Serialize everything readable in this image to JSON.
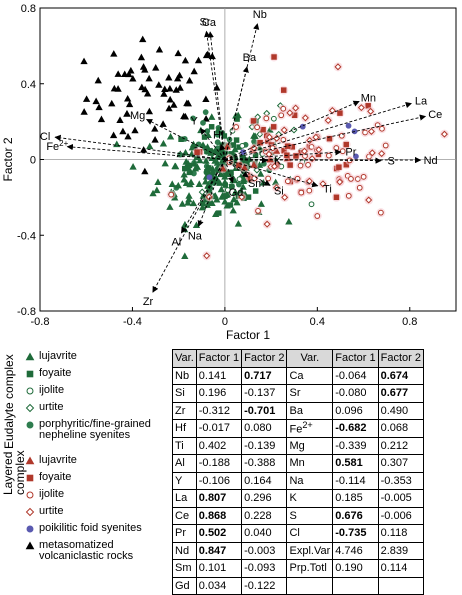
{
  "chart_data": {
    "type": "scatter",
    "xlabel": "Factor 1",
    "ylabel": "Factor 2",
    "xlim": [
      -0.8,
      1.0
    ],
    "ylim": [
      -0.8,
      0.8
    ],
    "xticks": [
      "-0.8",
      "-0.4",
      "0",
      "0.4",
      "0.8"
    ],
    "xtick_values": [
      -0.8,
      -0.4,
      0,
      0.4,
      0.8
    ],
    "yticks": [
      "0.8",
      "0.4",
      "0",
      "-0.4",
      "-0.8"
    ],
    "ytick_values": [
      0.8,
      0.4,
      0,
      -0.4,
      -0.8
    ],
    "loadings": [
      {
        "label": "Nb",
        "x": 0.141,
        "y": 0.717
      },
      {
        "label": "Sr",
        "x": -0.08,
        "y": 0.677
      },
      {
        "label": "Ca",
        "x": -0.064,
        "y": 0.674
      },
      {
        "label": "Ba",
        "x": 0.096,
        "y": 0.49
      },
      {
        "label": "Mg",
        "x": -0.339,
        "y": 0.212
      },
      {
        "label": "Cl",
        "x": -0.735,
        "y": 0.118
      },
      {
        "label": "Fe2+",
        "x": -0.682,
        "y": 0.068
      },
      {
        "label": "Hf",
        "x": -0.017,
        "y": 0.08
      },
      {
        "label": "Mn",
        "x": 0.581,
        "y": 0.307
      },
      {
        "label": "La",
        "x": 0.807,
        "y": 0.296
      },
      {
        "label": "Ce",
        "x": 0.868,
        "y": 0.228
      },
      {
        "label": "K",
        "x": 0.185,
        "y": -0.005
      },
      {
        "label": "Pr",
        "x": 0.502,
        "y": 0.04
      },
      {
        "label": "S",
        "x": 0.676,
        "y": -0.006
      },
      {
        "label": "Nd",
        "x": 0.847,
        "y": -0.003
      },
      {
        "label": "Sm",
        "x": 0.101,
        "y": -0.093
      },
      {
        "label": "Si",
        "x": 0.196,
        "y": -0.137
      },
      {
        "label": "Ti",
        "x": 0.402,
        "y": -0.139
      },
      {
        "label": "Y",
        "x": -0.106,
        "y": 0.164
      },
      {
        "label": "Gd",
        "x": 0.034,
        "y": -0.122
      },
      {
        "label": "Na",
        "x": -0.114,
        "y": -0.353
      },
      {
        "label": "Al",
        "x": -0.188,
        "y": -0.388
      },
      {
        "label": "Zr",
        "x": -0.312,
        "y": -0.701
      }
    ],
    "series": [
      {
        "name": "lujavrite",
        "group": "Eudalyte complex",
        "marker": "triangle",
        "color": "#1f6b3a",
        "filled": true
      },
      {
        "name": "foyaite",
        "group": "Eudalyte complex",
        "marker": "square",
        "color": "#1f6b3a",
        "filled": true
      },
      {
        "name": "ijolite",
        "group": "Eudalyte complex",
        "marker": "circle",
        "color": "#1f6b3a",
        "filled": false
      },
      {
        "name": "urtite",
        "group": "Eudalyte complex",
        "marker": "diamond",
        "color": "#1f6b3a",
        "filled": false
      },
      {
        "name": "porphyritic/fine-grained nepheline syenites",
        "group": "Eudalyte complex",
        "marker": "circle",
        "color": "#2e7d4f",
        "filled": true
      },
      {
        "name": "lujavrite",
        "group": "Layered complex",
        "marker": "triangle",
        "color": "#b0382b",
        "filled": true
      },
      {
        "name": "foyaite",
        "group": "Layered complex",
        "marker": "square",
        "color": "#b0382b",
        "filled": true
      },
      {
        "name": "ijolite",
        "group": "Layered complex",
        "marker": "circle",
        "color": "#b0382b",
        "filled": false
      },
      {
        "name": "urtite",
        "group": "Layered complex",
        "marker": "diamond",
        "color": "#b0382b",
        "filled": false
      },
      {
        "name": "poikilitic foid syenites",
        "group": "",
        "marker": "circle",
        "color": "#5a5ab0",
        "filled": true
      },
      {
        "name": "metasomatized volcaniclastic rocks",
        "group": "",
        "marker": "triangle",
        "color": "#000000",
        "filled": true
      }
    ],
    "clusters": [
      {
        "series": 0,
        "cx": -0.05,
        "cy": -0.07,
        "sx": 0.12,
        "sy": 0.13,
        "n": 160
      },
      {
        "series": 1,
        "cx": 0.02,
        "cy": -0.02,
        "sx": 0.12,
        "sy": 0.1,
        "n": 35
      },
      {
        "series": 2,
        "cx": 0.15,
        "cy": 0.02,
        "sx": 0.1,
        "sy": 0.1,
        "n": 12
      },
      {
        "series": 3,
        "cx": 0.2,
        "cy": 0.05,
        "sx": 0.15,
        "sy": 0.12,
        "n": 10
      },
      {
        "series": 4,
        "cx": -0.02,
        "cy": 0.0,
        "sx": 0.1,
        "sy": 0.1,
        "n": 45
      },
      {
        "series": 5,
        "cx": 0.15,
        "cy": 0.0,
        "sx": 0.1,
        "sy": 0.08,
        "n": 12
      },
      {
        "series": 6,
        "cx": 0.3,
        "cy": 0.05,
        "sx": 0.2,
        "sy": 0.15,
        "n": 35
      },
      {
        "series": 7,
        "cx": 0.35,
        "cy": -0.05,
        "sx": 0.22,
        "sy": 0.15,
        "n": 45
      },
      {
        "series": 8,
        "cx": 0.42,
        "cy": 0.0,
        "sx": 0.22,
        "sy": 0.2,
        "n": 35
      },
      {
        "series": 9,
        "cx": 0.3,
        "cy": 0.05,
        "sx": 0.25,
        "sy": 0.12,
        "n": 6
      },
      {
        "series": 10,
        "cx": -0.3,
        "cy": 0.33,
        "sx": 0.15,
        "sy": 0.15,
        "n": 70
      }
    ]
  },
  "legend": {
    "group1": "Eudalyte complex",
    "group2": "Layered complex",
    "items": [
      "lujavrite",
      "foyaite",
      "ijolite",
      "urtite",
      "porphyritic/fine-grained nepheline syenites",
      "lujavrite",
      "foyaite",
      "ijolite",
      "urtite",
      "poikilitic foid syenites",
      "metasomatized volcaniclastic rocks"
    ]
  },
  "table": {
    "headers": [
      "Var.",
      "Factor 1",
      "Factor 2",
      "Var.",
      "Factor 1",
      "Factor 2"
    ],
    "rows": [
      [
        {
          "t": "Nb"
        },
        {
          "t": "0.141"
        },
        {
          "t": "0.717",
          "b": true
        },
        {
          "t": "Ca"
        },
        {
          "t": "-0.064"
        },
        {
          "t": "0.674",
          "b": true
        }
      ],
      [
        {
          "t": "Si"
        },
        {
          "t": "0.196"
        },
        {
          "t": "-0.137"
        },
        {
          "t": "Sr"
        },
        {
          "t": "-0.080"
        },
        {
          "t": "0.677",
          "b": true
        }
      ],
      [
        {
          "t": "Zr"
        },
        {
          "t": "-0.312"
        },
        {
          "t": "-0.701",
          "b": true
        },
        {
          "t": "Ba"
        },
        {
          "t": "0.096"
        },
        {
          "t": "0.490"
        }
      ],
      [
        {
          "t": "Hf"
        },
        {
          "t": "-0.017"
        },
        {
          "t": "0.080"
        },
        {
          "t": "Fe2+",
          "sup": true
        },
        {
          "t": "-0.682",
          "b": true
        },
        {
          "t": "0.068"
        }
      ],
      [
        {
          "t": "Ti"
        },
        {
          "t": "0.402"
        },
        {
          "t": "-0.139"
        },
        {
          "t": "Mg"
        },
        {
          "t": "-0.339"
        },
        {
          "t": "0.212"
        }
      ],
      [
        {
          "t": "Al"
        },
        {
          "t": "-0.188"
        },
        {
          "t": "-0.388"
        },
        {
          "t": "Mn"
        },
        {
          "t": "0.581",
          "b": true
        },
        {
          "t": "0.307"
        }
      ],
      [
        {
          "t": "Y"
        },
        {
          "t": "-0.106"
        },
        {
          "t": "0.164"
        },
        {
          "t": "Na"
        },
        {
          "t": "-0.114"
        },
        {
          "t": "-0.353"
        }
      ],
      [
        {
          "t": "La"
        },
        {
          "t": "0.807",
          "b": true
        },
        {
          "t": "0.296"
        },
        {
          "t": "K"
        },
        {
          "t": "0.185"
        },
        {
          "t": "-0.005"
        }
      ],
      [
        {
          "t": "Ce"
        },
        {
          "t": "0.868",
          "b": true
        },
        {
          "t": "0.228"
        },
        {
          "t": "S"
        },
        {
          "t": "0.676",
          "b": true
        },
        {
          "t": "-0.006"
        }
      ],
      [
        {
          "t": "Pr"
        },
        {
          "t": "0.502",
          "b": true
        },
        {
          "t": "0.040"
        },
        {
          "t": "Cl"
        },
        {
          "t": "-0.735",
          "b": true
        },
        {
          "t": "0.118"
        }
      ],
      [
        {
          "t": "Nd"
        },
        {
          "t": "0.847",
          "b": true
        },
        {
          "t": "-0.003"
        },
        {
          "t": "Expl.Var"
        },
        {
          "t": "4.746"
        },
        {
          "t": "2.839"
        }
      ],
      [
        {
          "t": "Sm"
        },
        {
          "t": "0.101"
        },
        {
          "t": "-0.093"
        },
        {
          "t": "Prp.Totl"
        },
        {
          "t": "0.190"
        },
        {
          "t": "0.114"
        }
      ],
      [
        {
          "t": "Gd"
        },
        {
          "t": "0.034"
        },
        {
          "t": "-0.122"
        },
        {
          "t": ""
        },
        {
          "t": ""
        },
        {
          "t": ""
        }
      ]
    ]
  }
}
